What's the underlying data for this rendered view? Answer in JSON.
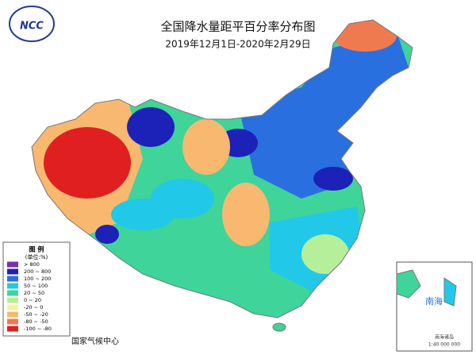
{
  "header": {
    "logo": "NCC",
    "title": "全国降水量距平百分率分布图",
    "subtitle": "2019年12月1日-2020年2月29日"
  },
  "legend": {
    "title": "图 例",
    "unit": "(单位:%)",
    "items": [
      {
        "label": "> 800",
        "color": "#7a2fa8"
      },
      {
        "label": "200 ~ 800",
        "color": "#1c22b8"
      },
      {
        "label": "100 ~ 200",
        "color": "#2a6fe0"
      },
      {
        "label": "50 ~ 100",
        "color": "#22c8e8"
      },
      {
        "label": "20 ~ 50",
        "color": "#3fd49a"
      },
      {
        "label": "0 ~ 20",
        "color": "#b6ef9a"
      },
      {
        "label": "-20 ~ 0",
        "color": "#fbf0a0"
      },
      {
        "label": "-50 ~ -20",
        "color": "#f8b870"
      },
      {
        "label": "-80 ~ -50",
        "color": "#f07a50"
      },
      {
        "label": "-100 ~ -80",
        "color": "#e02020"
      }
    ]
  },
  "footer": {
    "source": "国家气候中心"
  },
  "inset": {
    "label": "南海",
    "caption": "南海诸岛",
    "scale": "1:40 000 000"
  }
}
